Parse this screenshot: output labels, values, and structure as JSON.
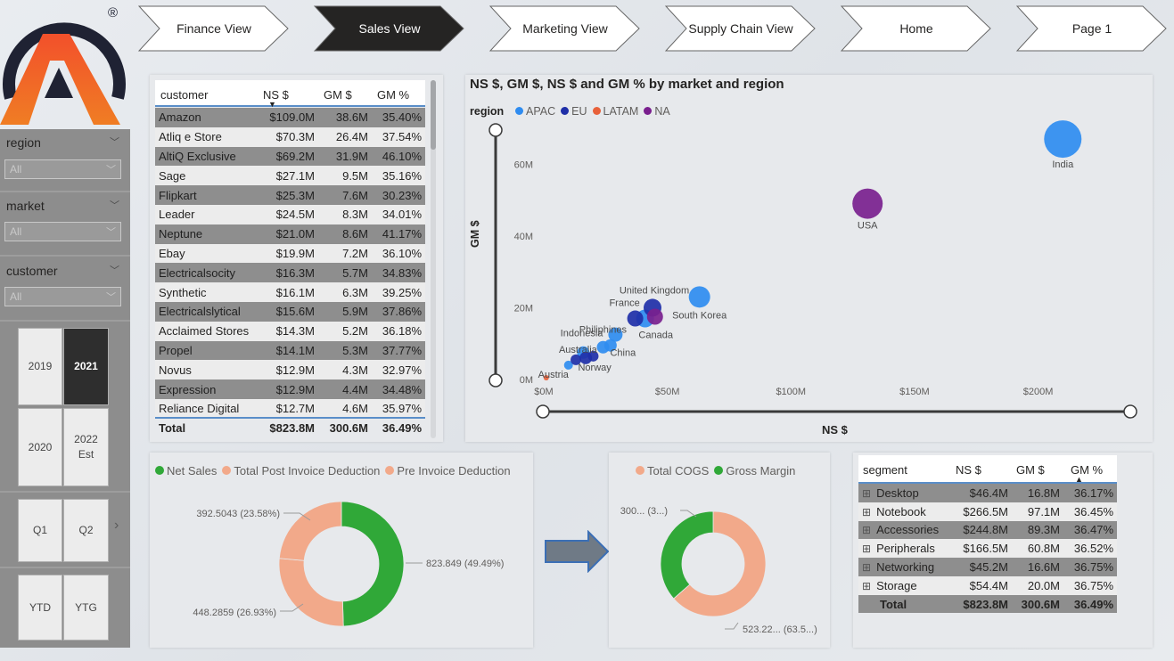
{
  "nav": [
    "Finance View",
    "Sales View",
    "Marketing View",
    "Supply Chain View",
    "Home",
    "Page 1"
  ],
  "logo": {
    "registered": "®"
  },
  "slicers": {
    "region": {
      "title": "region",
      "value": "All"
    },
    "market": {
      "title": "market",
      "value": "All"
    },
    "customer": {
      "title": "customer",
      "value": "All"
    }
  },
  "years": [
    "2019",
    "2021",
    "2020",
    "2022\nEst"
  ],
  "quarters": [
    "Q1",
    "Q2"
  ],
  "periods": [
    "YTD",
    "YTG"
  ],
  "customer_table": {
    "headers": [
      "customer",
      "NS $",
      "GM $",
      "GM %"
    ],
    "rows": [
      [
        "Amazon",
        "$109.0M",
        "38.6M",
        "35.40%"
      ],
      [
        "Atliq e Store",
        "$70.3M",
        "26.4M",
        "37.54%"
      ],
      [
        "AltiQ Exclusive",
        "$69.2M",
        "31.9M",
        "46.10%"
      ],
      [
        "Sage",
        "$27.1M",
        "9.5M",
        "35.16%"
      ],
      [
        "Flipkart",
        "$25.3M",
        "7.6M",
        "30.23%"
      ],
      [
        "Leader",
        "$24.5M",
        "8.3M",
        "34.01%"
      ],
      [
        "Neptune",
        "$21.0M",
        "8.6M",
        "41.17%"
      ],
      [
        "Ebay",
        "$19.9M",
        "7.2M",
        "36.10%"
      ],
      [
        "Electricalsocity",
        "$16.3M",
        "5.7M",
        "34.83%"
      ],
      [
        "Synthetic",
        "$16.1M",
        "6.3M",
        "39.25%"
      ],
      [
        "Electricalslytical",
        "$15.6M",
        "5.9M",
        "37.86%"
      ],
      [
        "Acclaimed Stores",
        "$14.3M",
        "5.2M",
        "36.18%"
      ],
      [
        "Propel",
        "$14.1M",
        "5.3M",
        "37.77%"
      ],
      [
        "Novus",
        "$12.9M",
        "4.3M",
        "32.97%"
      ],
      [
        "Expression",
        "$12.9M",
        "4.4M",
        "34.48%"
      ],
      [
        "Reliance Digital",
        "$12.7M",
        "4.6M",
        "35.97%"
      ]
    ],
    "total": [
      "Total",
      "$823.8M",
      "300.6M",
      "36.49%"
    ]
  },
  "chart_data": [
    {
      "type": "scatter",
      "title": "NS $, GM $, NS $ and GM % by market and region",
      "xlabel": "NS $",
      "ylabel": "GM $",
      "xlim": [
        0,
        220
      ],
      "ylim": [
        0,
        70
      ],
      "x_ticks": [
        "$0M",
        "$50M",
        "$100M",
        "$150M",
        "$200M"
      ],
      "y_ticks": [
        "0M",
        "20M",
        "40M",
        "60M"
      ],
      "legend_title": "region",
      "legend_position": "top-left",
      "series": [
        {
          "name": "APAC",
          "color": "#2f8cf0",
          "points": [
            {
              "label": "India",
              "x": 210,
              "y": 67,
              "r": 21
            },
            {
              "label": "South Korea",
              "x": 63,
              "y": 23,
              "r": 12
            },
            {
              "label": "Canada",
              "x": 41,
              "y": 17,
              "r": 10
            },
            {
              "label": "Philiphines",
              "x": 29,
              "y": 12.5,
              "r": 8
            },
            {
              "label": "Indonesia",
              "x": 24,
              "y": 9,
              "r": 7
            },
            {
              "label": "China",
              "x": 27,
              "y": 9.5,
              "r": 7
            },
            {
              "label": "Australia",
              "x": 16,
              "y": 7.5,
              "r": 7
            },
            {
              "label": "",
              "x": 10,
              "y": 4,
              "r": 5
            }
          ]
        },
        {
          "name": "EU",
          "color": "#1f2fa8",
          "points": [
            {
              "label": "United Kingdom",
              "x": 44,
              "y": 20,
              "r": 10
            },
            {
              "label": "France",
              "x": 37,
              "y": 17,
              "r": 9
            },
            {
              "label": "Norway",
              "x": 17,
              "y": 6,
              "r": 7
            },
            {
              "label": "",
              "x": 13,
              "y": 5.5,
              "r": 6
            },
            {
              "label": "",
              "x": 20,
              "y": 6.5,
              "r": 6
            }
          ]
        },
        {
          "name": "LATAM",
          "color": "#e8613a",
          "points": [
            {
              "label": "Austria",
              "x": 1,
              "y": 0.5,
              "r": 3
            }
          ]
        },
        {
          "name": "NA",
          "color": "#7a1f8e",
          "points": [
            {
              "label": "USA",
              "x": 131,
              "y": 49,
              "r": 17
            },
            {
              "label": "",
              "x": 45,
              "y": 17.5,
              "r": 9
            }
          ]
        }
      ]
    },
    {
      "type": "pie",
      "legend": [
        "Net Sales",
        "Total Post Invoice Deduction",
        "Pre Invoice Deduction"
      ],
      "slices": [
        {
          "name": "Net Sales",
          "value": 823.849,
          "label": "823.849 (49.49%)",
          "color": "#30a838"
        },
        {
          "name": "Total Post Invoice Deduction",
          "value": 448.2859,
          "label": "448.2859 (26.93%)",
          "color": "#f2a98a"
        },
        {
          "name": "Pre Invoice Deduction",
          "value": 392.5043,
          "label": "392.5043 (23.58%)",
          "color": "#f2a98a"
        }
      ]
    },
    {
      "type": "pie",
      "legend": [
        "Total COGS",
        "Gross Margin"
      ],
      "slices": [
        {
          "name": "Total COGS",
          "value": 523.22,
          "label": "523.22... (63.5...)",
          "color": "#f2a98a"
        },
        {
          "name": "Gross Margin",
          "value": 300.6,
          "label": "300... (3...)",
          "color": "#30a838"
        }
      ]
    }
  ],
  "segment_table": {
    "headers": [
      "segment",
      "NS $",
      "GM $",
      "GM %"
    ],
    "rows": [
      [
        "Desktop",
        "$46.4M",
        "16.8M",
        "36.17%"
      ],
      [
        "Notebook",
        "$266.5M",
        "97.1M",
        "36.45%"
      ],
      [
        "Accessories",
        "$244.8M",
        "89.3M",
        "36.47%"
      ],
      [
        "Peripherals",
        "$166.5M",
        "60.8M",
        "36.52%"
      ],
      [
        "Networking",
        "$45.2M",
        "16.6M",
        "36.75%"
      ],
      [
        "Storage",
        "$54.4M",
        "20.0M",
        "36.75%"
      ]
    ],
    "total": [
      "Total",
      "$823.8M",
      "300.6M",
      "36.49%"
    ],
    "expand_icon": "⊞"
  }
}
